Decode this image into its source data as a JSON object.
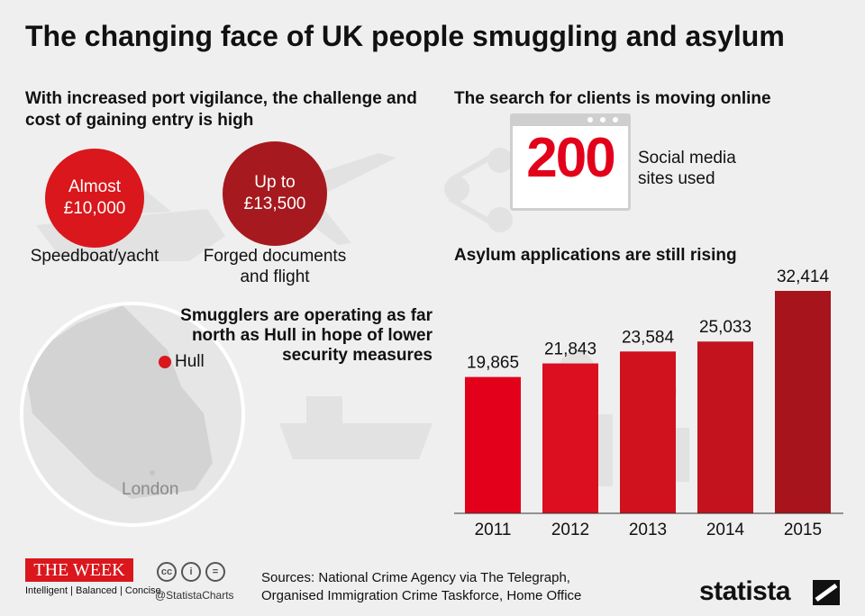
{
  "title": "The changing face of UK people smuggling and asylum",
  "left_panel": {
    "heading": "With increased port vigilance, the challenge and cost of gaining entry is high",
    "costs": [
      {
        "line1": "Almost",
        "line2": "£10,000",
        "label": "Speedboat/yacht",
        "color": "#d9171c"
      },
      {
        "line1": "Up to",
        "line2": "£13,500",
        "label_line1": "Forged documents",
        "label_line2": "and flight",
        "color": "#a6191e"
      }
    ],
    "map": {
      "hull_label": "Hull",
      "london_label": "London",
      "smugglers_text": "Smugglers are operating as far north as Hull in hope of lower security measures"
    }
  },
  "online_panel": {
    "heading": "The search for clients is moving online",
    "count": "200",
    "label": "Social media sites used"
  },
  "chart_data": {
    "type": "bar",
    "title": "Asylum applications are still rising",
    "categories": [
      "2011",
      "2012",
      "2013",
      "2014",
      "2015"
    ],
    "values": [
      19865,
      21843,
      23584,
      25033,
      32414
    ],
    "value_labels": [
      "19,865",
      "21,843",
      "23,584",
      "25,033",
      "32,414"
    ],
    "bar_colors": [
      "#e3001b",
      "#db0f1f",
      "#d0111e",
      "#c2131f",
      "#a8141c"
    ],
    "ylim": [
      0,
      32414
    ],
    "grid": false
  },
  "footer": {
    "brand": "THE WEEK",
    "tagline": "Intelligent | Balanced | Concise",
    "cc_icons": [
      "cc",
      "i",
      "="
    ],
    "handle": "@StatistaCharts",
    "sources_line1": "Sources: National Crime Agency via The Telegraph,",
    "sources_line2": "Organised Immigration Crime Taskforce, Home Office",
    "statista": "statista"
  }
}
